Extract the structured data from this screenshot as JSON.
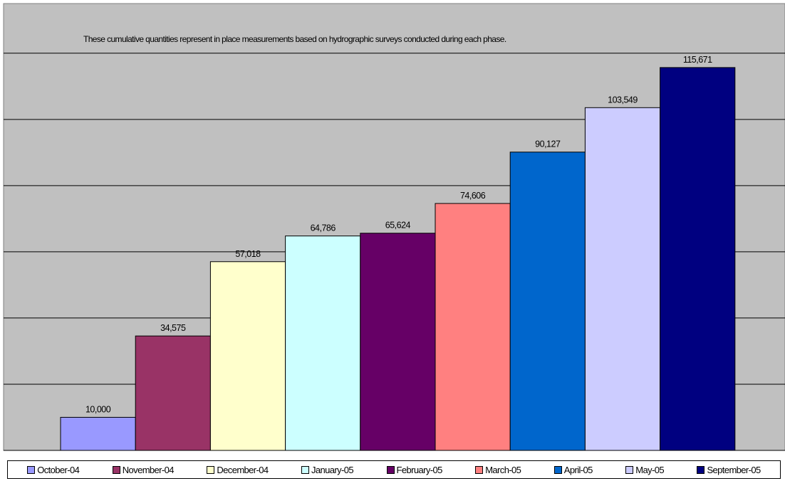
{
  "chart_data": {
    "type": "bar",
    "note": "These cumulative quantities represent in place measurements based on hydrographic surveys conducted during each phase.",
    "title": "",
    "xlabel": "",
    "ylabel": "",
    "ylim": [
      0,
      135000
    ],
    "grid": true,
    "legend_position": "bottom",
    "series": [
      {
        "name": "October-04",
        "value": 10000,
        "label": "10,000",
        "color": "#9999ff"
      },
      {
        "name": "November-04",
        "value": 34575,
        "label": "34,575",
        "color": "#993366"
      },
      {
        "name": "December-04",
        "value": 57018,
        "label": "57,018",
        "color": "#ffffcc"
      },
      {
        "name": "January-05",
        "value": 64786,
        "label": "64,786",
        "color": "#ccffff"
      },
      {
        "name": "February-05",
        "value": 65624,
        "label": "65,624",
        "color": "#660066"
      },
      {
        "name": "March-05",
        "value": 74606,
        "label": "74,606",
        "color": "#ff8080"
      },
      {
        "name": "April-05",
        "value": 90127,
        "label": "90,127",
        "color": "#0066cc"
      },
      {
        "name": "May-05",
        "value": 103549,
        "label": "103,549",
        "color": "#ccccff"
      },
      {
        "name": "September-05",
        "value": 115671,
        "label": "115,671",
        "color": "#000080"
      }
    ]
  }
}
